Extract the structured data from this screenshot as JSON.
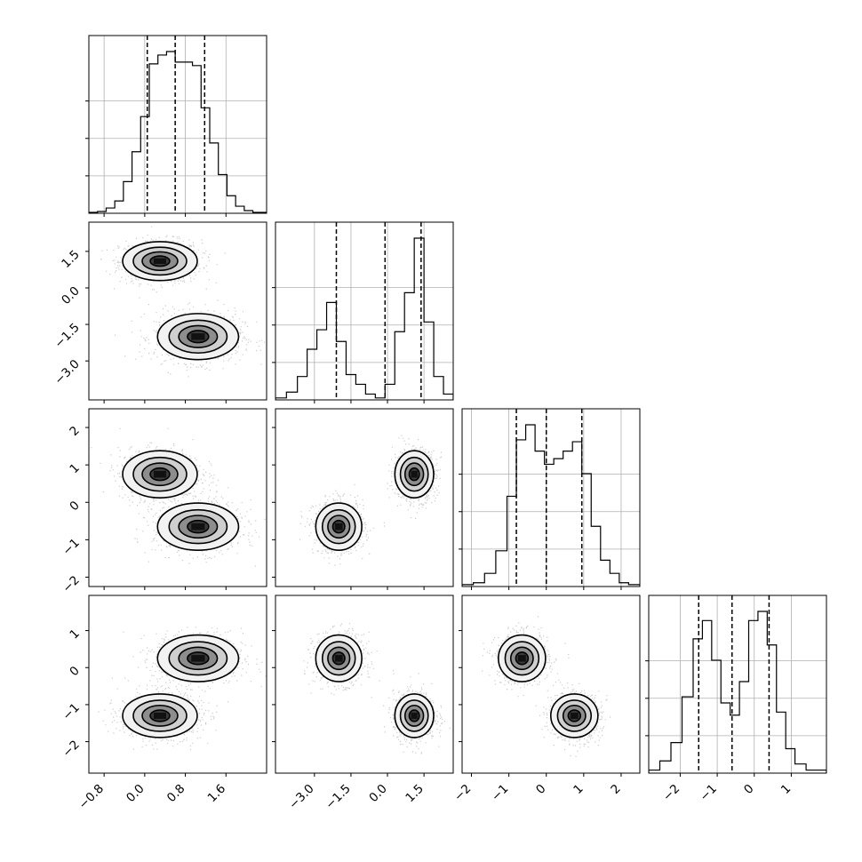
{
  "chart_data": {
    "type": "corner",
    "title": "",
    "parameters": [
      {
        "index": 0,
        "label": "",
        "range": [
          -1.1,
          2.4
        ],
        "ticks": [
          {
            "v": -0.8,
            "label": "−0.8"
          },
          {
            "v": 0.0,
            "label": "0.0"
          },
          {
            "v": 0.8,
            "label": "0.8"
          },
          {
            "v": 1.6,
            "label": "1.6"
          }
        ],
        "quantiles": [
          0.05,
          0.6,
          1.18
        ]
      },
      {
        "index": 1,
        "label": "",
        "range": [
          -4.6,
          2.7
        ],
        "ticks": [
          {
            "v": -3.0,
            "label": "−3.0"
          },
          {
            "v": -1.5,
            "label": "−1.5"
          },
          {
            "v": 0.0,
            "label": "0.0"
          },
          {
            "v": 1.5,
            "label": "1.5"
          }
        ],
        "quantiles": [
          -2.1,
          -0.1,
          1.38
        ]
      },
      {
        "index": 2,
        "label": "",
        "range": [
          -2.25,
          2.5
        ],
        "ticks": [
          {
            "v": -2,
            "label": "−2"
          },
          {
            "v": -1,
            "label": "−1"
          },
          {
            "v": 0,
            "label": "0"
          },
          {
            "v": 1,
            "label": "1"
          },
          {
            "v": 2,
            "label": "2"
          }
        ],
        "quantiles": [
          -0.8,
          0.0,
          0.95
        ]
      },
      {
        "index": 3,
        "label": "",
        "range": [
          -2.85,
          1.95
        ],
        "ticks": [
          {
            "v": -2,
            "label": "−2"
          },
          {
            "v": -1,
            "label": "−1"
          },
          {
            "v": 0,
            "label": "0"
          },
          {
            "v": 1,
            "label": "1"
          }
        ],
        "quantiles": [
          -1.5,
          -0.6,
          0.4
        ]
      }
    ],
    "histograms": [
      {
        "param": 0,
        "bins": [
          [
            -1.1,
            -0.93
          ],
          [
            -0.93,
            -0.76
          ],
          [
            -0.76,
            -0.59
          ],
          [
            -0.59,
            -0.42
          ],
          [
            -0.42,
            -0.25
          ],
          [
            -0.25,
            -0.08
          ],
          [
            -0.08,
            0.09
          ],
          [
            0.09,
            0.26
          ],
          [
            0.26,
            0.43
          ],
          [
            0.43,
            0.6
          ],
          [
            0.6,
            0.77
          ],
          [
            0.77,
            0.94
          ],
          [
            0.94,
            1.11
          ],
          [
            1.11,
            1.28
          ],
          [
            1.28,
            1.45
          ],
          [
            1.45,
            1.62
          ],
          [
            1.62,
            1.79
          ],
          [
            1.79,
            1.96
          ],
          [
            1.96,
            2.13
          ],
          [
            2.13,
            2.4
          ]
        ],
        "counts": [
          0.5,
          1,
          3,
          7,
          18,
          35,
          55,
          85,
          90,
          92,
          86,
          86,
          84,
          60,
          40,
          22,
          10,
          4,
          1.5,
          0.5
        ]
      },
      {
        "param": 1,
        "bins": [
          [
            -4.6,
            -4.15
          ],
          [
            -4.15,
            -3.7
          ],
          [
            -3.7,
            -3.3
          ],
          [
            -3.3,
            -2.9
          ],
          [
            -2.9,
            -2.5
          ],
          [
            -2.5,
            -2.1
          ],
          [
            -2.1,
            -1.7
          ],
          [
            -1.7,
            -1.3
          ],
          [
            -1.3,
            -0.9
          ],
          [
            -0.9,
            -0.5
          ],
          [
            -0.5,
            -0.1
          ],
          [
            -0.1,
            0.3
          ],
          [
            0.3,
            0.7
          ],
          [
            0.7,
            1.1
          ],
          [
            1.1,
            1.5
          ],
          [
            1.5,
            1.9
          ],
          [
            1.9,
            2.3
          ],
          [
            2.3,
            2.7
          ]
        ],
        "counts": [
          1,
          4,
          12,
          26,
          36,
          50,
          30,
          13,
          8,
          3,
          1,
          8,
          35,
          55,
          83,
          40,
          12,
          3
        ]
      },
      {
        "param": 2,
        "bins": [
          [
            -2.25,
            -1.95
          ],
          [
            -1.95,
            -1.65
          ],
          [
            -1.65,
            -1.35
          ],
          [
            -1.35,
            -1.05
          ],
          [
            -1.05,
            -0.8
          ],
          [
            -0.8,
            -0.55
          ],
          [
            -0.55,
            -0.3
          ],
          [
            -0.3,
            -0.05
          ],
          [
            -0.05,
            0.2
          ],
          [
            0.2,
            0.45
          ],
          [
            0.45,
            0.7
          ],
          [
            0.7,
            0.95
          ],
          [
            0.95,
            1.2
          ],
          [
            1.2,
            1.45
          ],
          [
            1.45,
            1.7
          ],
          [
            1.7,
            1.95
          ],
          [
            1.95,
            2.2
          ],
          [
            2.2,
            2.5
          ]
        ],
        "counts": [
          1,
          2,
          7,
          19,
          48,
          78,
          86,
          72,
          65,
          68,
          72,
          77,
          60,
          32,
          14,
          7,
          2,
          1
        ]
      },
      {
        "param": 3,
        "bins": [
          [
            -2.85,
            -2.55
          ],
          [
            -2.55,
            -2.25
          ],
          [
            -2.25,
            -1.95
          ],
          [
            -1.95,
            -1.65
          ],
          [
            -1.65,
            -1.4
          ],
          [
            -1.4,
            -1.15
          ],
          [
            -1.15,
            -0.9
          ],
          [
            -0.9,
            -0.65
          ],
          [
            -0.65,
            -0.4
          ],
          [
            -0.4,
            -0.15
          ],
          [
            -0.15,
            0.1
          ],
          [
            0.1,
            0.35
          ],
          [
            0.35,
            0.6
          ],
          [
            0.6,
            0.85
          ],
          [
            0.85,
            1.1
          ],
          [
            1.1,
            1.4
          ],
          [
            1.4,
            1.95
          ]
        ],
        "counts": [
          1,
          4,
          10,
          25,
          44,
          50,
          37,
          23,
          19,
          30,
          50,
          53,
          42,
          20,
          8,
          3,
          1
        ]
      }
    ],
    "modes": [
      {
        "means": [
          0.3,
          1.1,
          0.75,
          -1.3
        ],
        "sd": [
          0.35,
          0.38,
          0.3,
          0.28
        ]
      },
      {
        "means": [
          1.05,
          -2.0,
          -0.65,
          0.25
        ],
        "sd": [
          0.38,
          0.45,
          0.3,
          0.3
        ]
      }
    ],
    "grid": true,
    "quantile_line_style": "dashed",
    "contour_levels_sigma": [
      0.5,
      1.0,
      1.5,
      2.0
    ]
  }
}
